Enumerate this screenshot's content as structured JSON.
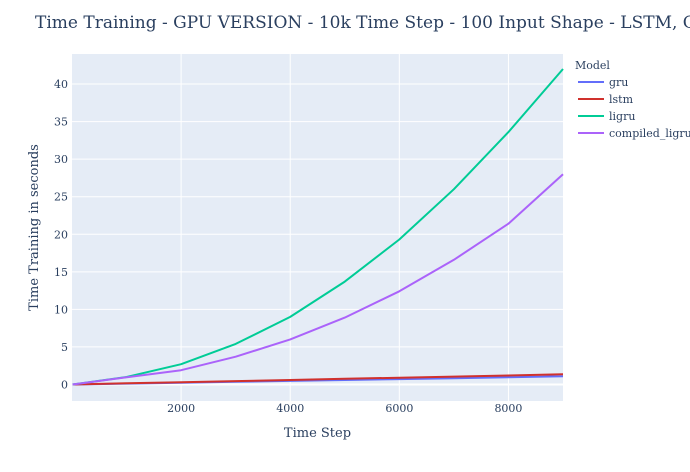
{
  "chart_data": {
    "type": "line",
    "title": "Time Training - GPU VERSION - 10k Time Step - 100 Input Shape - LSTM, GRU, LiGRU, Compiled LiGRU",
    "xlabel": "Time Step",
    "ylabel": "Time Training in seconds",
    "xlim": [
      0,
      9000
    ],
    "ylim": [
      -2.2,
      44
    ],
    "xticks": [
      2000,
      4000,
      6000,
      8000
    ],
    "xtick_labels": [
      "2000",
      "4000",
      "6000",
      "8000"
    ],
    "yticks": [
      0,
      5,
      10,
      15,
      20,
      25,
      30,
      35,
      40
    ],
    "ytick_labels": [
      "0",
      "5",
      "10",
      "15",
      "20",
      "25",
      "30",
      "35",
      "40"
    ],
    "grid": true,
    "legend_title": "Model",
    "legend_position": "right",
    "x": [
      10,
      1000,
      2000,
      3000,
      4000,
      5000,
      6000,
      7000,
      8000,
      9000
    ],
    "series": [
      {
        "name": "gru",
        "color": "#636efa",
        "values": [
          0.0,
          0.12,
          0.24,
          0.36,
          0.48,
          0.6,
          0.72,
          0.84,
          0.96,
          1.1
        ]
      },
      {
        "name": "lstm",
        "color": "#d0312d",
        "values": [
          0.0,
          0.15,
          0.3,
          0.45,
          0.6,
          0.75,
          0.9,
          1.05,
          1.2,
          1.35
        ]
      },
      {
        "name": "ligru",
        "color": "#00cc96",
        "values": [
          0.0,
          1.0,
          2.7,
          5.4,
          9.0,
          13.7,
          19.3,
          26.0,
          33.6,
          42.0
        ]
      },
      {
        "name": "compiled_ligru",
        "color": "#ab63fa",
        "values": [
          0.0,
          0.95,
          1.9,
          3.7,
          6.0,
          8.9,
          12.4,
          16.6,
          21.4,
          28.0
        ]
      }
    ]
  }
}
